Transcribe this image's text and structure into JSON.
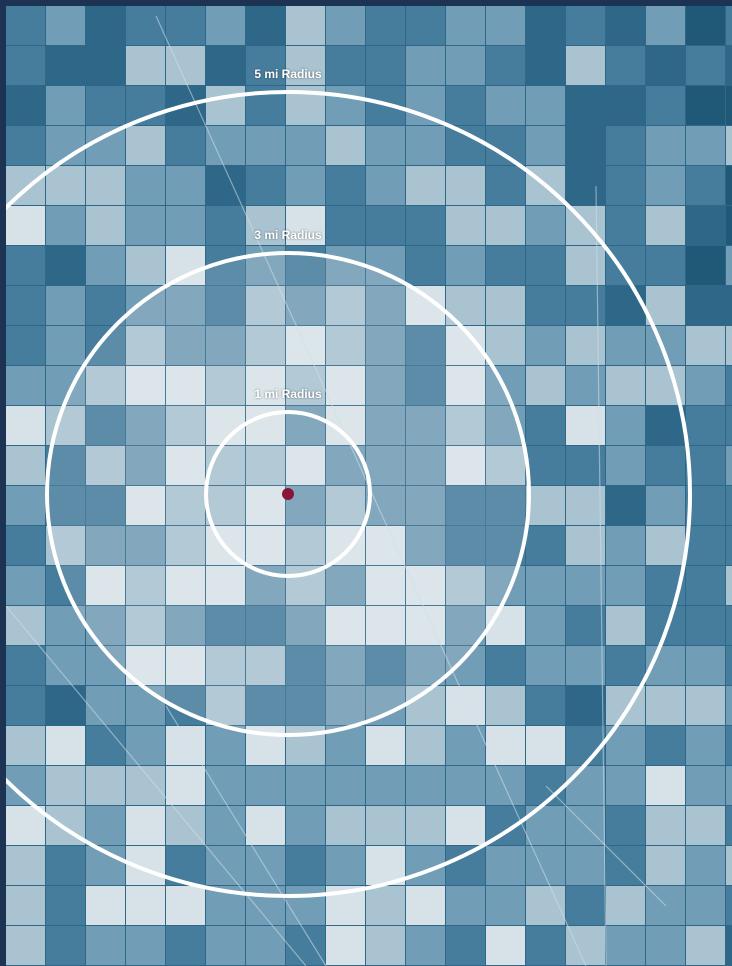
{
  "map": {
    "colors": {
      "base": "#2f6788",
      "dark": "#1f5676",
      "mid": "#4a7f9e",
      "light": "#7aa3bb",
      "pale": "#b7cdd9",
      "white": "#e9eff2",
      "ring": "#ffffff",
      "center": "#8a1538",
      "frame": "#1c3354"
    },
    "center_marker": {
      "icon": "location-dot-icon"
    },
    "rings": [
      {
        "id": "ring-5mi",
        "label": "5 mi Radius",
        "radius_mi": 5
      },
      {
        "id": "ring-3mi",
        "label": "3 mi Radius",
        "radius_mi": 3
      },
      {
        "id": "ring-1mi",
        "label": "1 mi Radius",
        "radius_mi": 1
      }
    ]
  }
}
